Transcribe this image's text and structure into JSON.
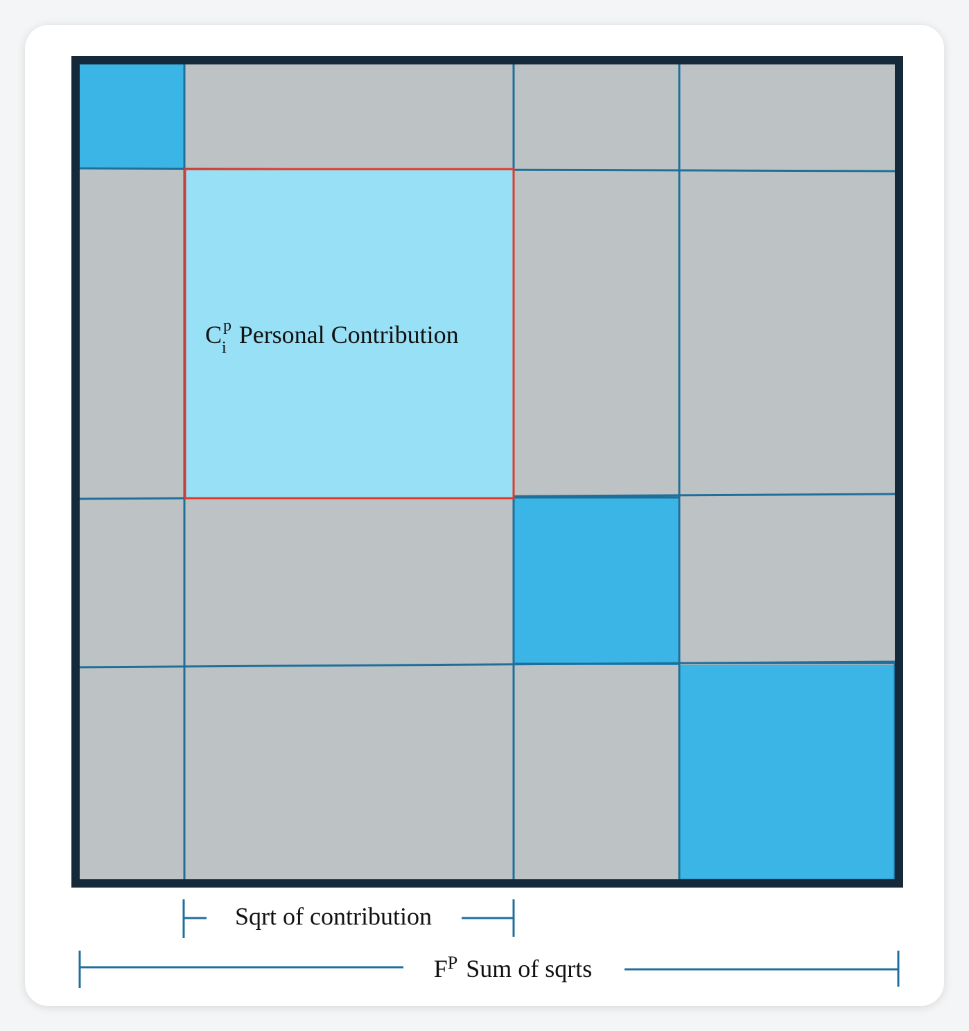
{
  "cell_label": {
    "symbol": "C",
    "superscript": "p",
    "subscript": "i",
    "text": "Personal Contribution"
  },
  "inner_measure": {
    "text": "Sqrt of contribution"
  },
  "outer_measure": {
    "symbol": "F",
    "superscript": "P",
    "text": "Sum of sqrts"
  }
}
